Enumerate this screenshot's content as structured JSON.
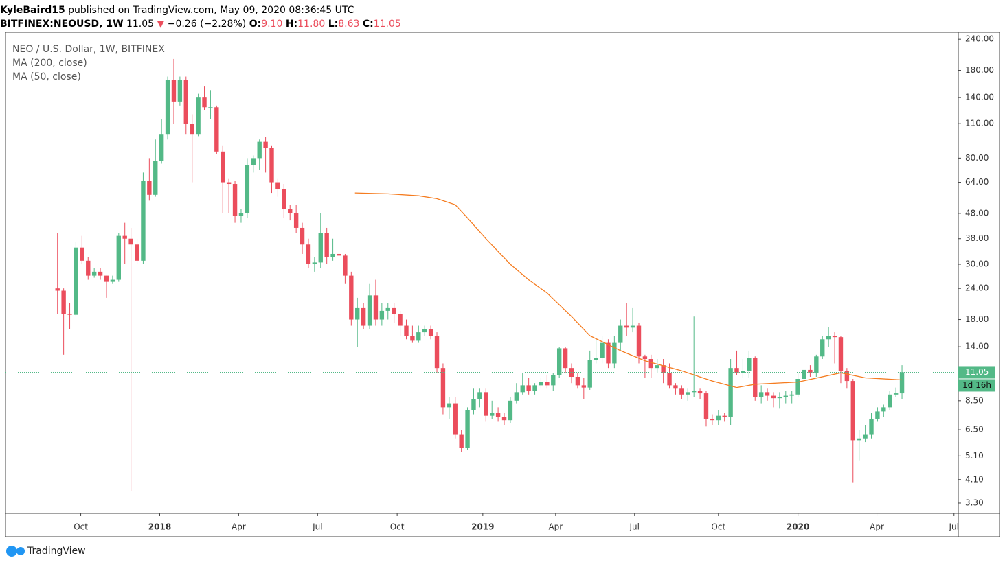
{
  "header": {
    "author": "KyleBaird15",
    "published": "published on TradingView.com, May 09, 2020 08:36:45 UTC",
    "symbol": "BITFINEX:NEOUSD, 1W",
    "last": "11.05",
    "arrow": "▼",
    "change": "−0.26 (−2.28%)",
    "ohlc": [
      [
        "O:",
        "9.10"
      ],
      [
        "H:",
        "11.80"
      ],
      [
        "L:",
        "8.63"
      ],
      [
        "C:",
        "11.05"
      ]
    ]
  },
  "chart_data": {
    "type": "candlestick",
    "title": "NEO / U.S. Dollar, 1W, BITFINEX",
    "indicators": [
      "MA (200, close)",
      "MA (50, close)"
    ],
    "up_color": "#53b987",
    "down_color": "#eb4d5c",
    "x": [
      0,
      1,
      2,
      3,
      4,
      5,
      6,
      7,
      8,
      9,
      10,
      11,
      12,
      13,
      14,
      15,
      16,
      17,
      18,
      19,
      20,
      21,
      22,
      23,
      24,
      25,
      26,
      27,
      28,
      29,
      30,
      31,
      32,
      33,
      34,
      35,
      36,
      37,
      38,
      39,
      40,
      41,
      42,
      43,
      44,
      45,
      46,
      47,
      48,
      49,
      50,
      51,
      52,
      53,
      54,
      55,
      56,
      57,
      58,
      59,
      60,
      61,
      62,
      63,
      64,
      65,
      66,
      67,
      68,
      69,
      70,
      71,
      72,
      73,
      74,
      75,
      76,
      77,
      78,
      79,
      80,
      81,
      82,
      83,
      84,
      85,
      86,
      87,
      88,
      89,
      90,
      91,
      92,
      93,
      94,
      95,
      96,
      97,
      98,
      99,
      100,
      101,
      102,
      103,
      104,
      105,
      106,
      107,
      108,
      109,
      110,
      111,
      112,
      113,
      114,
      115,
      116,
      117,
      118,
      119,
      120,
      121,
      122,
      123,
      124,
      125,
      126,
      127,
      128,
      129,
      130,
      131,
      132,
      133,
      134,
      135,
      136,
      137,
      138
    ],
    "open": [
      24,
      23.5,
      19,
      18.8,
      35,
      31,
      27,
      28,
      27,
      25.5,
      26,
      39,
      38,
      36,
      31,
      65,
      57,
      78,
      100,
      165,
      135,
      165,
      110,
      100,
      140,
      128,
      128,
      85,
      64,
      63,
      47,
      48,
      75,
      80,
      93,
      88,
      64,
      60,
      50,
      48,
      42,
      36,
      30,
      30.5,
      40,
      32,
      33,
      32.5,
      27,
      18,
      20,
      17,
      22.5,
      18,
      19.5,
      20,
      19,
      17,
      15.5,
      14.8,
      16,
      16.5,
      15.5,
      11.5,
      8,
      8.3,
      6.2,
      5.5,
      7.8,
      8.6,
      9.2,
      7.4,
      7.6,
      7.3,
      7.1,
      8.5,
      9.2,
      9.8,
      9.3,
      9.8,
      10.1,
      9.8,
      10.8,
      13.8,
      11.5,
      10.6,
      9.8,
      9.6,
      12.4,
      12.6,
      14.5,
      12,
      14.5,
      17,
      16.7,
      17,
      12.8,
      12.5,
      11.5,
      11.8,
      11,
      9.8,
      9.5,
      9,
      9.2,
      9.3,
      9.1,
      7.2,
      7.1,
      7.4,
      7.3,
      11.5,
      11,
      11.2,
      12.6,
      8.8,
      9.2,
      8.9,
      8.7,
      8.8,
      8.9,
      9,
      10.4,
      11.3,
      11,
      12.8,
      15,
      15.5,
      15.3,
      11.2,
      10.2,
      5.9,
      6,
      6.2,
      7.2,
      7.7,
      8,
      9,
      9.1
    ],
    "high": [
      40,
      24,
      21,
      37,
      39,
      32,
      29,
      29,
      27,
      27,
      40,
      44,
      42,
      38,
      70,
      80,
      95,
      115,
      170,
      200,
      170,
      170,
      120,
      145,
      155,
      150,
      130,
      90,
      66,
      65,
      50,
      80,
      82,
      95,
      97,
      90,
      66,
      63,
      52,
      52,
      44,
      38,
      32,
      48,
      42,
      38,
      34,
      33,
      28,
      22,
      21,
      25,
      26,
      21,
      21,
      21,
      19.5,
      18,
      17,
      17,
      17,
      17,
      16,
      12,
      8.8,
      8.8,
      6.5,
      8,
      9.5,
      9.5,
      9.5,
      8.5,
      8,
      7.6,
      8.8,
      10,
      11,
      10.5,
      10,
      10.5,
      10.8,
      11,
      14,
      14,
      12,
      11,
      10.5,
      13.5,
      15,
      15.5,
      15,
      15.5,
      18,
      21,
      20,
      17.5,
      13,
      13,
      12.5,
      12.5,
      12,
      10,
      9.8,
      9.5,
      18.5,
      9.5,
      9.3,
      7.5,
      7.8,
      7.6,
      12.5,
      13.5,
      12.5,
      13.5,
      12.8,
      9.8,
      9.5,
      9.2,
      9.2,
      9.3,
      9.3,
      11,
      12.5,
      11.8,
      13,
      15.5,
      16.8,
      16,
      15.5,
      11.5,
      10.4,
      6.5,
      6.8,
      7.6,
      8,
      8.2,
      9.3,
      9.6,
      11.8
    ],
    "low": [
      19,
      13,
      16.5,
      18.5,
      30,
      26,
      26.5,
      26,
      22,
      25,
      25.5,
      30,
      3.7,
      30,
      30,
      54,
      56,
      76,
      95,
      110,
      130,
      100,
      64,
      98,
      125,
      115,
      83,
      48,
      48,
      44,
      44,
      46,
      70,
      72,
      70,
      58,
      56,
      46,
      45,
      40,
      33,
      29,
      28,
      29,
      30,
      31,
      30,
      25,
      17,
      14,
      16.5,
      16.5,
      17,
      17,
      18,
      17.5,
      15.5,
      15,
      14.5,
      14.5,
      15.5,
      15,
      11,
      7.5,
      7.2,
      6,
      5.3,
      5.4,
      7.5,
      8,
      7,
      7.2,
      7,
      6.8,
      6.9,
      8.3,
      9,
      9,
      9,
      9.5,
      9.5,
      9.3,
      10.5,
      11,
      10,
      9.5,
      8.6,
      9.4,
      12,
      12,
      11.5,
      11.5,
      13.5,
      15.5,
      16,
      12,
      10.5,
      10.5,
      11,
      10,
      9.5,
      9,
      8.6,
      8.5,
      8.8,
      8.6,
      6.7,
      6.8,
      6.8,
      7,
      6.8,
      10.8,
      10.5,
      10.5,
      8.5,
      8.3,
      8.5,
      8,
      7.9,
      8.3,
      8.3,
      8.8,
      10,
      10.6,
      10.6,
      12.5,
      14,
      12,
      10,
      9.5,
      4,
      4.9,
      5.8,
      6,
      7,
      7.3,
      7.8,
      8.8,
      8.63
    ],
    "close": [
      23.5,
      19,
      18.8,
      35,
      31,
      27,
      28,
      27,
      25.5,
      26,
      39,
      38,
      36,
      31,
      65,
      57,
      78,
      100,
      165,
      135,
      165,
      110,
      100,
      140,
      128,
      128,
      85,
      64,
      63,
      47,
      48,
      75,
      80,
      93,
      88,
      64,
      60,
      50,
      48,
      42,
      36,
      30,
      30.5,
      40,
      32,
      33,
      32.5,
      27,
      18,
      20,
      17,
      22.5,
      18,
      19.5,
      20,
      19,
      17,
      15.5,
      14.8,
      16,
      16.5,
      15.5,
      11.5,
      8,
      8.3,
      6.2,
      5.5,
      7.8,
      8.6,
      9.2,
      7.4,
      7.6,
      7.3,
      7.1,
      8.5,
      9.2,
      9.8,
      9.3,
      9.8,
      10.1,
      9.8,
      10.8,
      13.8,
      11.5,
      10.6,
      9.8,
      9.6,
      12.4,
      12.6,
      14.5,
      12,
      14.5,
      17,
      16.7,
      17,
      12.8,
      12.5,
      11.5,
      11.8,
      11,
      9.8,
      9.5,
      9,
      9.2,
      9.3,
      9.1,
      7.2,
      7.1,
      7.4,
      7.3,
      11.5,
      11,
      11.2,
      12.6,
      8.8,
      9.2,
      8.9,
      8.7,
      8.8,
      8.9,
      9,
      10.4,
      11.3,
      11,
      12.8,
      15,
      15.5,
      15.3,
      11.2,
      10.2,
      5.9,
      6,
      6.2,
      7.2,
      7.7,
      8,
      9,
      9.1,
      11.05
    ],
    "series": [
      {
        "name": "MA (50, close)",
        "color": "#f57c20",
        "x": [
          48.6,
          54,
          59,
          62,
          65,
          67,
          70,
          74,
          77,
          80,
          84,
          87,
          92,
          96,
          102,
          107,
          111,
          114,
          121,
          128,
          132,
          138
        ],
        "values": [
          58,
          57.5,
          56.5,
          55,
          52,
          46,
          38,
          30,
          26,
          23,
          18.5,
          15.5,
          13.5,
          12.3,
          11.2,
          10.2,
          9.6,
          9.9,
          10.1,
          11,
          10.5,
          10.3
        ]
      }
    ],
    "last_price": 11.05,
    "countdown": "1d 16h",
    "log_scale": true,
    "ylim": [
      3,
      256
    ],
    "yticks": [
      {
        "value": 240,
        "label": "240.00"
      },
      {
        "value": 180,
        "label": "180.00"
      },
      {
        "value": 140,
        "label": "140.00"
      },
      {
        "value": 110,
        "label": "110.00"
      },
      {
        "value": 80,
        "label": "80.00"
      },
      {
        "value": 64,
        "label": "64.00"
      },
      {
        "value": 48,
        "label": "48.00"
      },
      {
        "value": 38,
        "label": "38.00"
      },
      {
        "value": 30,
        "label": "30.00"
      },
      {
        "value": 24,
        "label": "24.00"
      },
      {
        "value": 18,
        "label": "18.00"
      },
      {
        "value": 14,
        "label": "14.00"
      },
      {
        "value": 8.5,
        "label": "8.50"
      },
      {
        "value": 6.5,
        "label": "6.50"
      },
      {
        "value": 5.1,
        "label": "5.10"
      },
      {
        "value": 4.1,
        "label": "4.10"
      },
      {
        "value": 3.3,
        "label": "3.30"
      }
    ],
    "xlim": [
      -8.5,
      147.2
    ],
    "xticks": [
      {
        "value": 3.8,
        "label": "Oct"
      },
      {
        "value": 16.7,
        "label": "2018"
      },
      {
        "value": 29.6,
        "label": "Apr"
      },
      {
        "value": 42.5,
        "label": "Jul"
      },
      {
        "value": 55.5,
        "label": "Oct"
      },
      {
        "value": 69.5,
        "label": "2019"
      },
      {
        "value": 81.4,
        "label": "Apr"
      },
      {
        "value": 94.3,
        "label": "Jul"
      },
      {
        "value": 108,
        "label": "Oct"
      },
      {
        "value": 121,
        "label": "2020"
      },
      {
        "value": 133.9,
        "label": "Apr"
      },
      {
        "value": 146.5,
        "label": "Jul"
      }
    ]
  },
  "footer": {
    "brand": "TradingView"
  }
}
